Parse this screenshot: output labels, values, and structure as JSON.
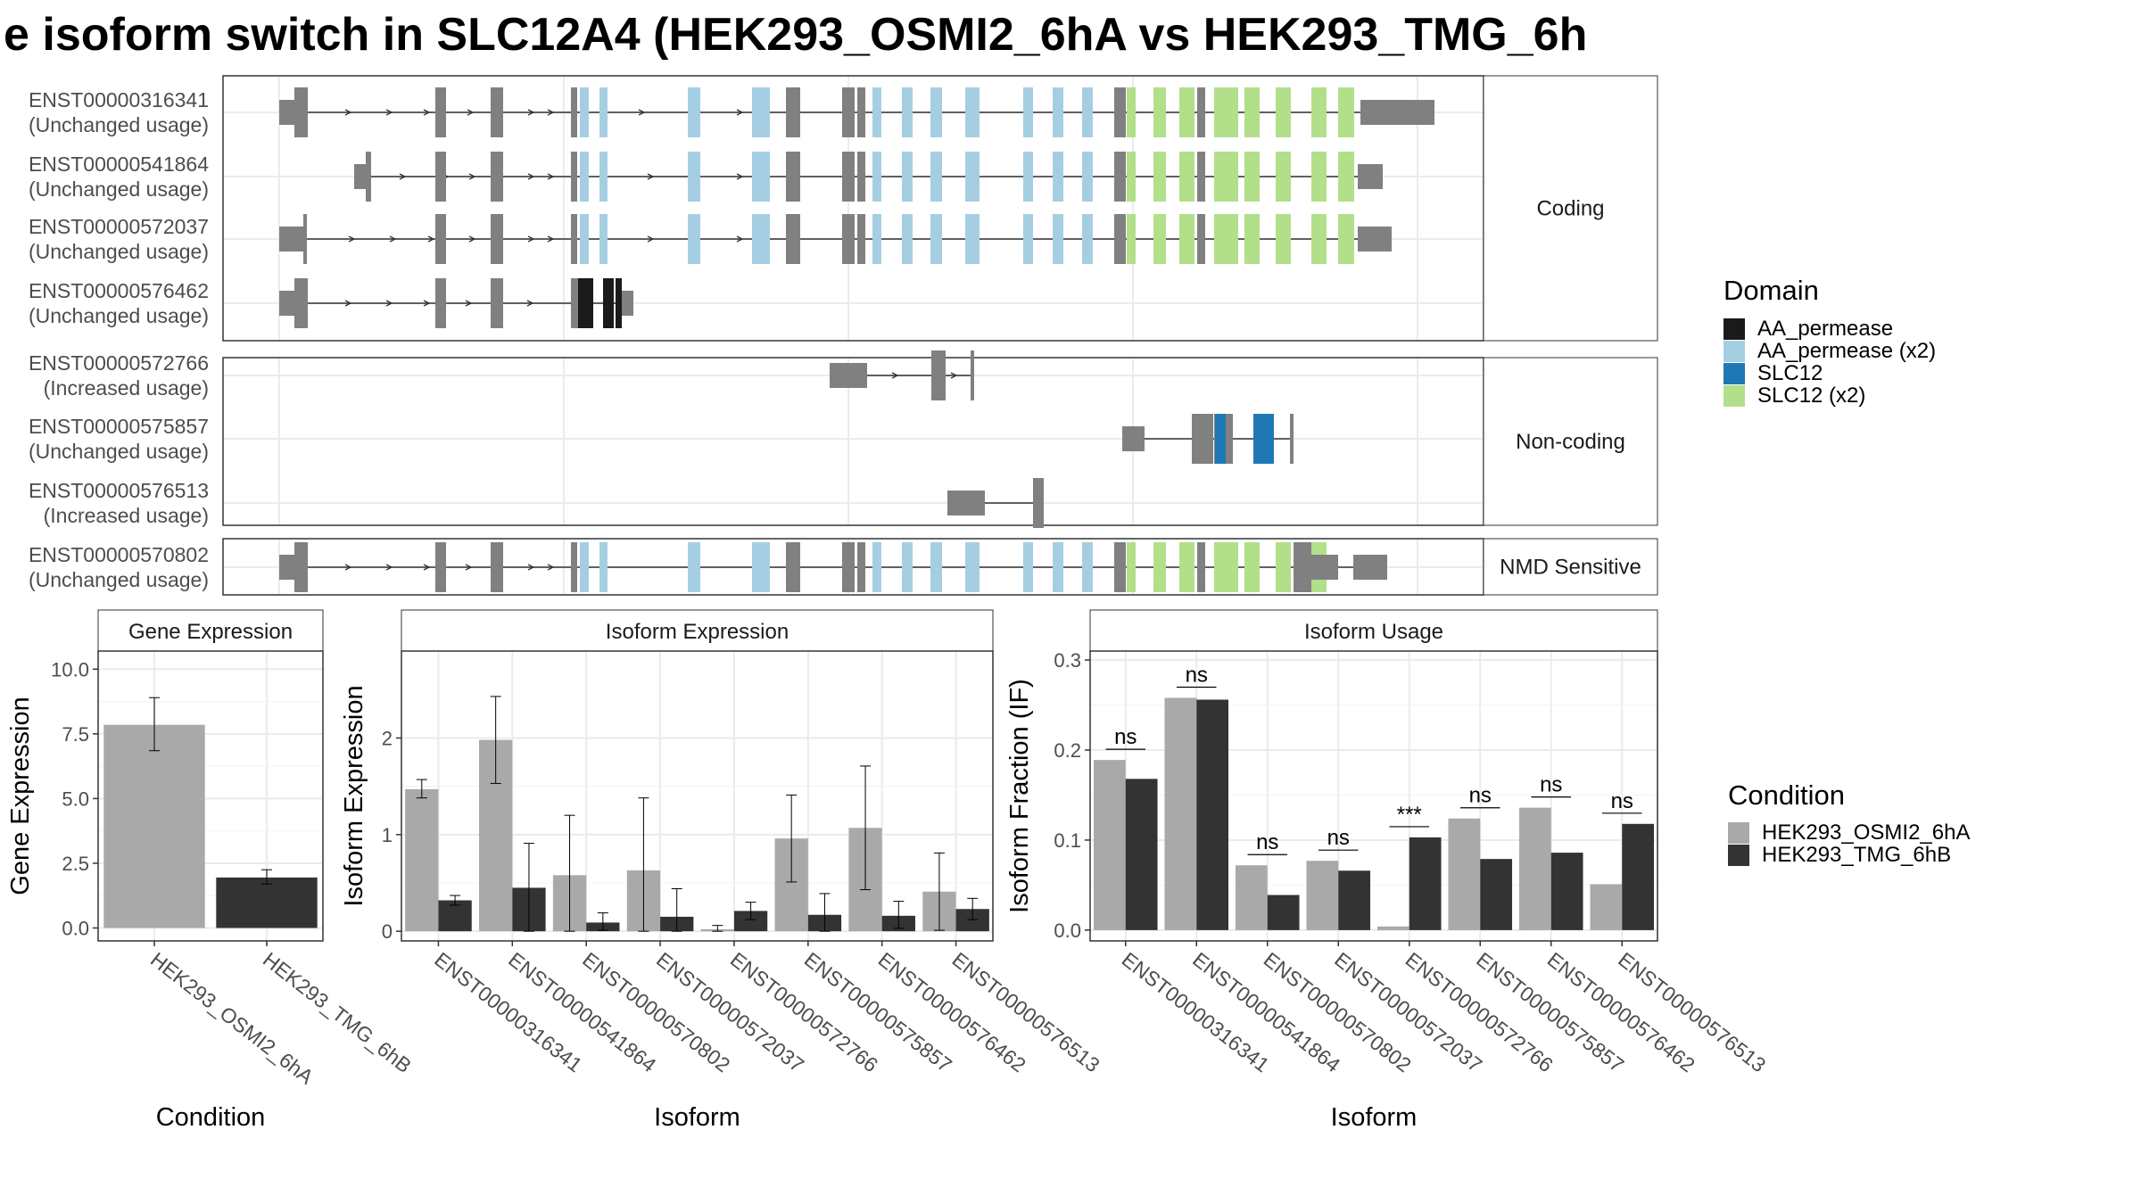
{
  "title": "e isoform switch in SLC12A4 (HEK293_OSMI2_6hA vs HEK293_TMG_6h",
  "structure": {
    "groups": [
      {
        "label": "Coding",
        "isoforms": [
          {
            "id": "ENST00000316341",
            "usage": "(Unchanged usage)"
          },
          {
            "id": "ENST00000541864",
            "usage": "(Unchanged usage)"
          },
          {
            "id": "ENST00000572037",
            "usage": "(Unchanged usage)"
          },
          {
            "id": "ENST00000576462",
            "usage": "(Unchanged usage)"
          }
        ]
      },
      {
        "label": "Non-coding",
        "isoforms": [
          {
            "id": "ENST00000572766",
            "usage": "(Increased usage)"
          },
          {
            "id": "ENST00000575857",
            "usage": "(Unchanged usage)"
          },
          {
            "id": "ENST00000576513",
            "usage": "(Increased usage)"
          }
        ]
      },
      {
        "label": "NMD Sensitive",
        "isoforms": [
          {
            "id": "ENST00000570802",
            "usage": "(Unchanged usage)"
          }
        ]
      }
    ]
  },
  "legend_domain": {
    "title": "Domain",
    "items": [
      {
        "label": "AA_permease",
        "color": "#1a1a1a"
      },
      {
        "label": "AA_permease (x2)",
        "color": "#a6cee3"
      },
      {
        "label": "SLC12",
        "color": "#1f78b4"
      },
      {
        "label": "SLC12 (x2)",
        "color": "#b2df8a"
      }
    ]
  },
  "legend_condition": {
    "title": "Condition",
    "items": [
      {
        "label": "HEK293_OSMI2_6hA",
        "color": "#a9a9a9"
      },
      {
        "label": "HEK293_TMG_6hB",
        "color": "#333333"
      }
    ]
  },
  "colors": {
    "exon": "#808080",
    "light": "#a9a9a9",
    "dark": "#333333"
  },
  "chart_data": [
    {
      "type": "bar",
      "title": "Gene Expression",
      "xlabel": "Condition",
      "ylabel": "Gene Expression",
      "categories": [
        "HEK293_OSMI2_6hA",
        "HEK293_TMG_6hB"
      ],
      "values": [
        7.85,
        1.95
      ],
      "err_low": [
        6.85,
        1.7
      ],
      "err_high": [
        8.9,
        2.25
      ],
      "ylim": [
        -0.5,
        10.7
      ],
      "yticks": [
        "0.0",
        "2.5",
        "5.0",
        "7.5",
        "10.0"
      ]
    },
    {
      "type": "bar",
      "title": "Isoform Expression",
      "xlabel": "Isoform",
      "ylabel": "Isoform Expression",
      "categories": [
        "ENST00000316341",
        "ENST00000541864",
        "ENST00000570802",
        "ENST00000572037",
        "ENST00000572766",
        "ENST00000575857",
        "ENST00000576462",
        "ENST00000576513"
      ],
      "series": [
        {
          "name": "HEK293_OSMI2_6hA",
          "values": [
            1.47,
            1.98,
            0.58,
            0.63,
            0.02,
            0.96,
            1.07,
            0.41
          ],
          "err_low": [
            1.38,
            1.53,
            0.0,
            0.0,
            0.0,
            0.51,
            0.43,
            0.01
          ],
          "err_high": [
            1.57,
            2.43,
            1.2,
            1.38,
            0.06,
            1.41,
            1.71,
            0.81
          ]
        },
        {
          "name": "HEK293_TMG_6hB",
          "values": [
            0.32,
            0.45,
            0.09,
            0.15,
            0.21,
            0.17,
            0.16,
            0.23
          ],
          "err_low": [
            0.27,
            0.0,
            0.01,
            0.0,
            0.12,
            0.0,
            0.03,
            0.12
          ],
          "err_high": [
            0.37,
            0.91,
            0.19,
            0.44,
            0.3,
            0.39,
            0.31,
            0.34
          ]
        }
      ],
      "ylim": [
        -0.1,
        2.9
      ],
      "yticks": [
        "0",
        "1",
        "2"
      ]
    },
    {
      "type": "bar",
      "title": "Isoform Usage",
      "xlabel": "Isoform",
      "ylabel": "Isoform Fraction (IF)",
      "categories": [
        "ENST00000316341",
        "ENST00000541864",
        "ENST00000570802",
        "ENST00000572037",
        "ENST00000572766",
        "ENST00000575857",
        "ENST00000576462",
        "ENST00000576513"
      ],
      "series": [
        {
          "name": "HEK293_OSMI2_6hA",
          "values": [
            0.189,
            0.258,
            0.072,
            0.077,
            0.004,
            0.124,
            0.136,
            0.051
          ]
        },
        {
          "name": "HEK293_TMG_6hB",
          "values": [
            0.168,
            0.256,
            0.039,
            0.066,
            0.103,
            0.079,
            0.086,
            0.118
          ]
        }
      ],
      "significance": [
        "ns",
        "ns",
        "ns",
        "ns",
        "***",
        "ns",
        "ns",
        "ns"
      ],
      "ylim": [
        -0.012,
        0.31
      ],
      "yticks": [
        "0.0",
        "0.1",
        "0.2",
        "0.3"
      ]
    }
  ]
}
